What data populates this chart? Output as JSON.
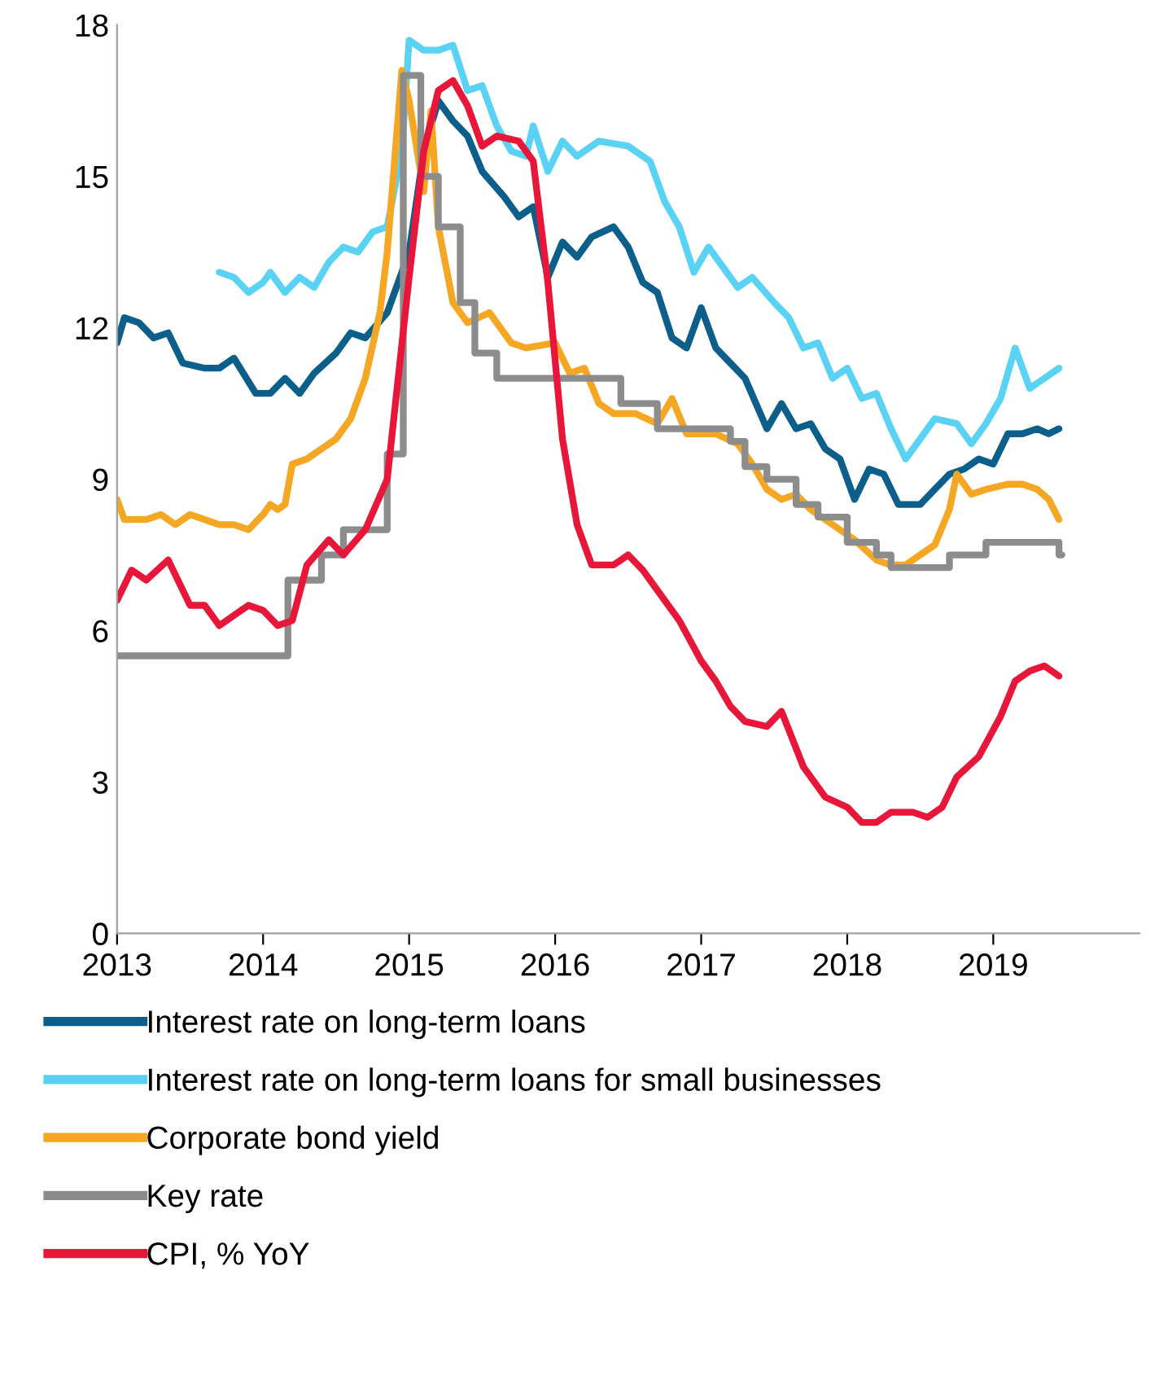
{
  "chart_data": {
    "type": "line",
    "xlim": [
      2013,
      2020
    ],
    "xticks": [
      2013,
      2014,
      2015,
      2016,
      2017,
      2018,
      2019
    ],
    "ylim": [
      0,
      18
    ],
    "yticks": [
      0,
      3,
      6,
      9,
      12,
      15,
      18
    ],
    "grid": false,
    "legend": "bottom",
    "marker": "none",
    "line_style": "solid",
    "series": [
      {
        "name": "Interest rate on long-term loans",
        "color": "#0b5f8a",
        "x": [
          2013,
          2013.05,
          2013.15,
          2013.25,
          2013.35,
          2013.45,
          2013.6,
          2013.7,
          2013.8,
          2013.95,
          2014.05,
          2014.15,
          2014.25,
          2014.35,
          2014.5,
          2014.6,
          2014.7,
          2014.85,
          2015.0,
          2015.1,
          2015.2,
          2015.3,
          2015.4,
          2015.5,
          2015.65,
          2015.75,
          2015.85,
          2015.95,
          2016.05,
          2016.15,
          2016.25,
          2016.4,
          2016.5,
          2016.6,
          2016.7,
          2016.8,
          2016.9,
          2017.0,
          2017.1,
          2017.2,
          2017.3,
          2017.45,
          2017.55,
          2017.65,
          2017.75,
          2017.85,
          2017.95,
          2018.05,
          2018.15,
          2018.25,
          2018.35,
          2018.5,
          2018.6,
          2018.7,
          2018.8,
          2018.9,
          2019.0,
          2019.1,
          2019.2,
          2019.3,
          2019.38,
          2019.45
        ],
        "values": [
          11.7,
          12.2,
          12.1,
          11.8,
          11.9,
          11.3,
          11.2,
          11.2,
          11.4,
          10.7,
          10.7,
          11.0,
          10.7,
          11.1,
          11.5,
          11.9,
          11.8,
          12.3,
          13.5,
          15.5,
          16.5,
          16.1,
          15.8,
          15.1,
          14.6,
          14.2,
          14.4,
          13.0,
          13.7,
          13.4,
          13.8,
          14.0,
          13.6,
          12.9,
          12.7,
          11.8,
          11.6,
          12.4,
          11.6,
          11.3,
          11.0,
          10.0,
          10.5,
          10.0,
          10.1,
          9.6,
          9.4,
          8.6,
          9.2,
          9.1,
          8.5,
          8.5,
          8.8,
          9.1,
          9.2,
          9.4,
          9.3,
          9.9,
          9.9,
          10.0,
          9.9,
          10.0
        ]
      },
      {
        "name": "Interest rate on long-term loans for small businesses",
        "color": "#5ad2f4",
        "x": [
          2013.7,
          2013.8,
          2013.9,
          2014.0,
          2014.05,
          2014.15,
          2014.25,
          2014.35,
          2014.45,
          2014.55,
          2014.65,
          2014.75,
          2014.85,
          2014.95,
          2015.0,
          2015.1,
          2015.2,
          2015.3,
          2015.4,
          2015.5,
          2015.6,
          2015.7,
          2015.8,
          2015.85,
          2015.95,
          2016.05,
          2016.15,
          2016.3,
          2016.5,
          2016.65,
          2016.75,
          2016.85,
          2016.95,
          2017.05,
          2017.15,
          2017.25,
          2017.35,
          2017.5,
          2017.6,
          2017.7,
          2017.8,
          2017.9,
          2018.0,
          2018.1,
          2018.2,
          2018.3,
          2018.4,
          2018.5,
          2018.6,
          2018.75,
          2018.85,
          2018.95,
          2019.05,
          2019.15,
          2019.25,
          2019.35,
          2019.45
        ],
        "values": [
          13.1,
          13.0,
          12.7,
          12.9,
          13.1,
          12.7,
          13.0,
          12.8,
          13.3,
          13.6,
          13.5,
          13.9,
          14.0,
          15.5,
          17.7,
          17.5,
          17.5,
          17.6,
          16.7,
          16.8,
          16.0,
          15.5,
          15.4,
          16.0,
          15.1,
          15.7,
          15.4,
          15.7,
          15.6,
          15.3,
          14.5,
          14.0,
          13.1,
          13.6,
          13.2,
          12.8,
          13.0,
          12.5,
          12.2,
          11.6,
          11.7,
          11.0,
          11.2,
          10.6,
          10.7,
          10.0,
          9.4,
          9.8,
          10.2,
          10.1,
          9.7,
          10.1,
          10.6,
          11.6,
          10.8,
          11.0,
          11.2
        ]
      },
      {
        "name": "Corporate bond yield",
        "color": "#f5a623",
        "x": [
          2013,
          2013.05,
          2013.2,
          2013.3,
          2013.4,
          2013.5,
          2013.6,
          2013.7,
          2013.8,
          2013.9,
          2014.0,
          2014.05,
          2014.1,
          2014.15,
          2014.2,
          2014.3,
          2014.4,
          2014.5,
          2014.6,
          2014.7,
          2014.8,
          2014.85,
          2014.95,
          2015.0,
          2015.1,
          2015.15,
          2015.2,
          2015.3,
          2015.4,
          2015.55,
          2015.7,
          2015.8,
          2016.0,
          2016.1,
          2016.2,
          2016.3,
          2016.4,
          2016.55,
          2016.7,
          2016.8,
          2016.9,
          2017.1,
          2017.25,
          2017.35,
          2017.45,
          2017.55,
          2017.65,
          2017.75,
          2017.85,
          2017.95,
          2018.05,
          2018.2,
          2018.3,
          2018.4,
          2018.5,
          2018.6,
          2018.7,
          2018.75,
          2018.85,
          2018.95,
          2019.1,
          2019.2,
          2019.3,
          2019.38,
          2019.45
        ],
        "values": [
          8.6,
          8.2,
          8.2,
          8.3,
          8.1,
          8.3,
          8.2,
          8.1,
          8.1,
          8.0,
          8.3,
          8.5,
          8.4,
          8.5,
          9.3,
          9.4,
          9.6,
          9.8,
          10.2,
          11.0,
          12.3,
          13.5,
          17.1,
          16.5,
          14.7,
          16.3,
          14.0,
          12.5,
          12.1,
          12.3,
          11.7,
          11.6,
          11.7,
          11.1,
          11.2,
          10.5,
          10.3,
          10.3,
          10.1,
          10.6,
          9.9,
          9.9,
          9.7,
          9.3,
          8.8,
          8.6,
          8.7,
          8.4,
          8.2,
          8.0,
          7.8,
          7.4,
          7.3,
          7.3,
          7.5,
          7.7,
          8.4,
          9.1,
          8.7,
          8.8,
          8.9,
          8.9,
          8.8,
          8.6,
          8.2
        ]
      },
      {
        "name": "Key rate",
        "color": "#8c8c8c",
        "type": "step",
        "x": [
          2013,
          2014.17,
          2014.4,
          2014.55,
          2014.85,
          2014.96,
          2015.08,
          2015.2,
          2015.35,
          2015.45,
          2015.6,
          2016.45,
          2016.7,
          2017.2,
          2017.3,
          2017.45,
          2017.65,
          2017.8,
          2018.0,
          2018.2,
          2018.3,
          2018.7,
          2018.95,
          2019.45,
          2019.47
        ],
        "values": [
          5.5,
          7.0,
          7.5,
          8.0,
          9.5,
          17.0,
          15.0,
          14.0,
          12.5,
          11.5,
          11.0,
          10.5,
          10.0,
          9.75,
          9.25,
          9.0,
          8.5,
          8.25,
          7.75,
          7.5,
          7.25,
          7.5,
          7.75,
          7.5,
          7.5
        ]
      },
      {
        "name": "CPI, % YoY",
        "color": "#e8173a",
        "x": [
          2013,
          2013.1,
          2013.2,
          2013.35,
          2013.5,
          2013.6,
          2013.7,
          2013.8,
          2013.9,
          2014.0,
          2014.1,
          2014.2,
          2014.3,
          2014.45,
          2014.55,
          2014.7,
          2014.85,
          2015.0,
          2015.1,
          2015.2,
          2015.3,
          2015.4,
          2015.5,
          2015.6,
          2015.75,
          2015.85,
          2015.95,
          2016.05,
          2016.15,
          2016.25,
          2016.4,
          2016.5,
          2016.6,
          2016.7,
          2016.85,
          2017.0,
          2017.1,
          2017.2,
          2017.3,
          2017.45,
          2017.55,
          2017.7,
          2017.85,
          2018.0,
          2018.1,
          2018.2,
          2018.3,
          2018.45,
          2018.55,
          2018.65,
          2018.75,
          2018.9,
          2019.05,
          2019.15,
          2019.25,
          2019.35,
          2019.45
        ],
        "values": [
          6.6,
          7.2,
          7.0,
          7.4,
          6.5,
          6.5,
          6.1,
          6.3,
          6.5,
          6.4,
          6.1,
          6.2,
          7.3,
          7.8,
          7.5,
          8.0,
          9.0,
          13.0,
          15.5,
          16.7,
          16.9,
          16.4,
          15.6,
          15.8,
          15.7,
          15.3,
          12.9,
          9.8,
          8.1,
          7.3,
          7.3,
          7.5,
          7.2,
          6.8,
          6.2,
          5.4,
          5.0,
          4.5,
          4.2,
          4.1,
          4.4,
          3.3,
          2.7,
          2.5,
          2.2,
          2.2,
          2.4,
          2.4,
          2.3,
          2.5,
          3.1,
          3.5,
          4.3,
          5.0,
          5.2,
          5.3,
          5.1
        ]
      }
    ]
  }
}
